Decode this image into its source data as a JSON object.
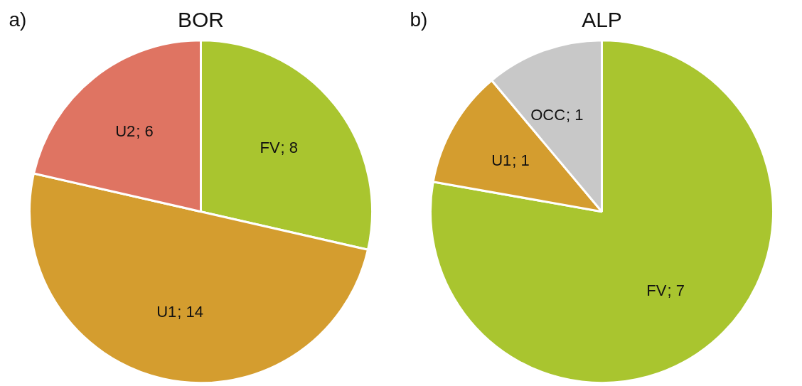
{
  "chart_data": [
    {
      "type": "pie",
      "title": "BOR",
      "annotations": [
        "a)"
      ],
      "categories": [
        "FV",
        "U1",
        "U2"
      ],
      "values": [
        8,
        14,
        6
      ],
      "colors": [
        "#a9c52f",
        "#d49d2f",
        "#df7462"
      ],
      "value_labels": [
        "; 8",
        "; 14",
        "; 6"
      ]
    },
    {
      "type": "pie",
      "title": "ALP",
      "annotations": [
        "b)"
      ],
      "categories": [
        "FV",
        "U1",
        "OCC"
      ],
      "values": [
        7,
        1,
        1
      ],
      "colors": [
        "#a9c52f",
        "#d49d2f",
        "#c8c8c8"
      ],
      "value_labels": [
        "; 7",
        "; 1",
        "; 1"
      ]
    }
  ]
}
